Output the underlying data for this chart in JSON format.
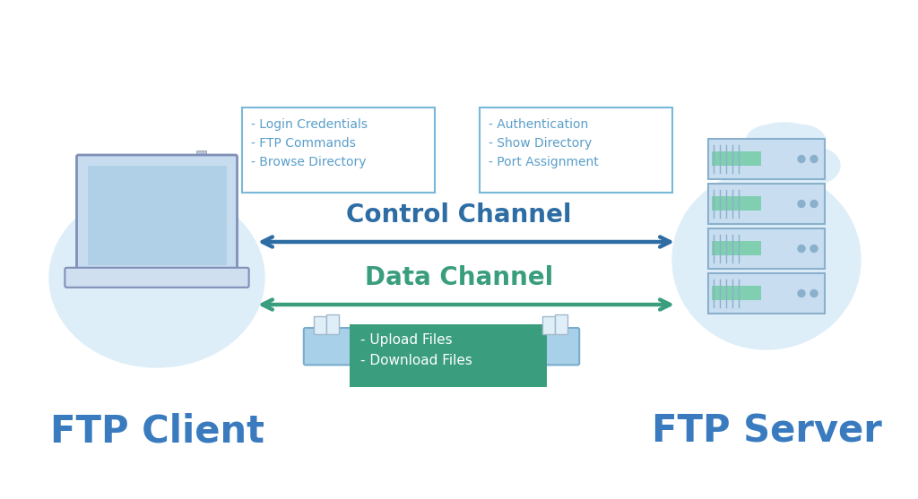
{
  "bg_color": "#ffffff",
  "control_channel_label": "Control Channel",
  "data_channel_label": "Data Channel",
  "control_color": "#2e6da4",
  "data_color": "#3a9e7e",
  "left_box_text": "- Login Credentials\n- FTP Commands\n- Browse Directory",
  "right_box_text": "- Authentication\n- Show Directory\n- Port Assignment",
  "bottom_box_text": "- Upload Files\n- Download Files",
  "box_border_color": "#7ab8d9",
  "box_text_color": "#5a9ec9",
  "bottom_box_bg": "#3a9e7e",
  "bottom_box_text_color": "#ffffff",
  "ftp_client_label": "FTP Client",
  "ftp_server_label": "FTP Server",
  "label_color": "#3a7bbf",
  "arrow_lw": 3.2,
  "arrow_mutation_scale": 20,
  "control_color_light": "#ddeef8",
  "server_body_color": "#c8ddf0",
  "server_border_color": "#8ab0cc",
  "server_green_strip": "#7fcfb0",
  "server_dot_color": "#8ab0cc",
  "laptop_body_color": "#c8dcf0",
  "laptop_screen_color": "#b0d0e8",
  "laptop_border_color": "#8090b8",
  "laptop_base_color": "#d0dff0",
  "bucket_body_color": "#a8d0e8",
  "bucket_border_color": "#7aaccc",
  "cloud_color": "#ddeef8",
  "icon_bg_color": "#ddeef8"
}
